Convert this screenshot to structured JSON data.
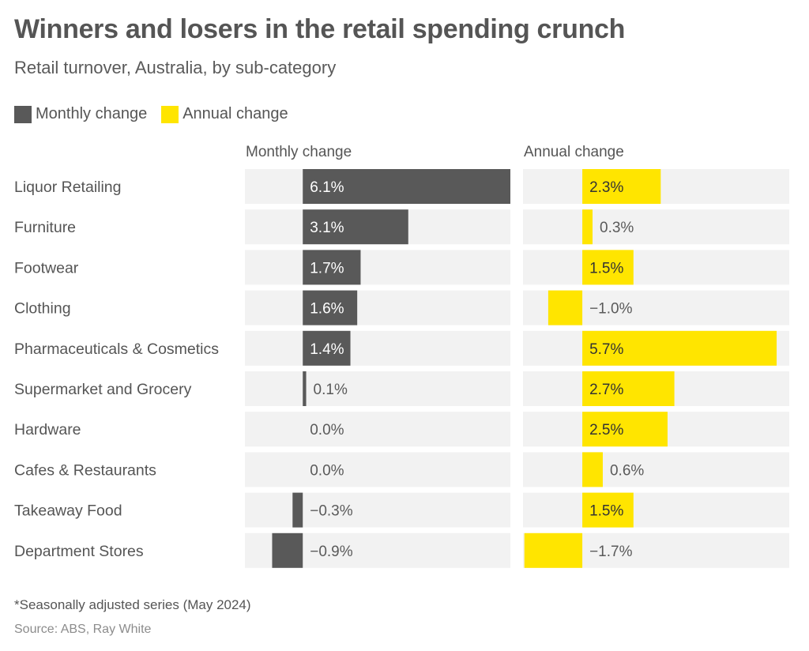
{
  "header": {
    "title": "Winners and losers in the retail spending crunch",
    "subtitle": "Retail turnover, Australia, by sub-category"
  },
  "legend": [
    {
      "label": "Monthly change",
      "color": "#595959"
    },
    {
      "label": "Annual change",
      "color": "#ffe500"
    }
  ],
  "footer": {
    "note": "*Seasonally adjusted series (May 2024)",
    "source": "Source: ABS, Ray White"
  },
  "chart_data": {
    "type": "bar",
    "orientation": "horizontal",
    "title": "Winners and losers in the retail spending crunch",
    "subtitle": "Retail turnover, Australia, by sub-category",
    "categories": [
      "Liquor Retailing",
      "Furniture",
      "Footwear",
      "Clothing",
      "Pharmaceuticals & Cosmetics",
      "Supermarket and Grocery",
      "Hardware",
      "Cafes & Restaurants",
      "Takeaway Food",
      "Department Stores"
    ],
    "series": [
      {
        "name": "Monthly change",
        "color": "#595959",
        "label_inside_color": "#ffffff",
        "values": [
          6.1,
          3.1,
          1.7,
          1.6,
          1.4,
          0.1,
          0.0,
          0.0,
          -0.3,
          -0.9
        ],
        "labels": [
          "6.1%",
          "3.1%",
          "1.7%",
          "1.6%",
          "1.4%",
          "0.1%",
          "0.0%",
          "0.0%",
          "−0.3%",
          "−0.9%"
        ],
        "xlim": [
          -1.7,
          6.1
        ]
      },
      {
        "name": "Annual change",
        "color": "#ffe500",
        "label_inside_color": "#333333",
        "values": [
          2.3,
          0.3,
          1.5,
          -1.0,
          5.7,
          2.7,
          2.5,
          0.6,
          1.5,
          -1.7
        ],
        "labels": [
          "2.3%",
          "0.3%",
          "1.5%",
          "−1.0%",
          "5.7%",
          "2.7%",
          "2.5%",
          "0.6%",
          "1.5%",
          "−1.7%"
        ],
        "xlim": [
          -1.74,
          6.07
        ]
      }
    ],
    "panel_background": "#f2f2f2",
    "outside_label_color": "#5a5a5a",
    "unit": "%",
    "legend_position": "top-left",
    "grid": false
  }
}
